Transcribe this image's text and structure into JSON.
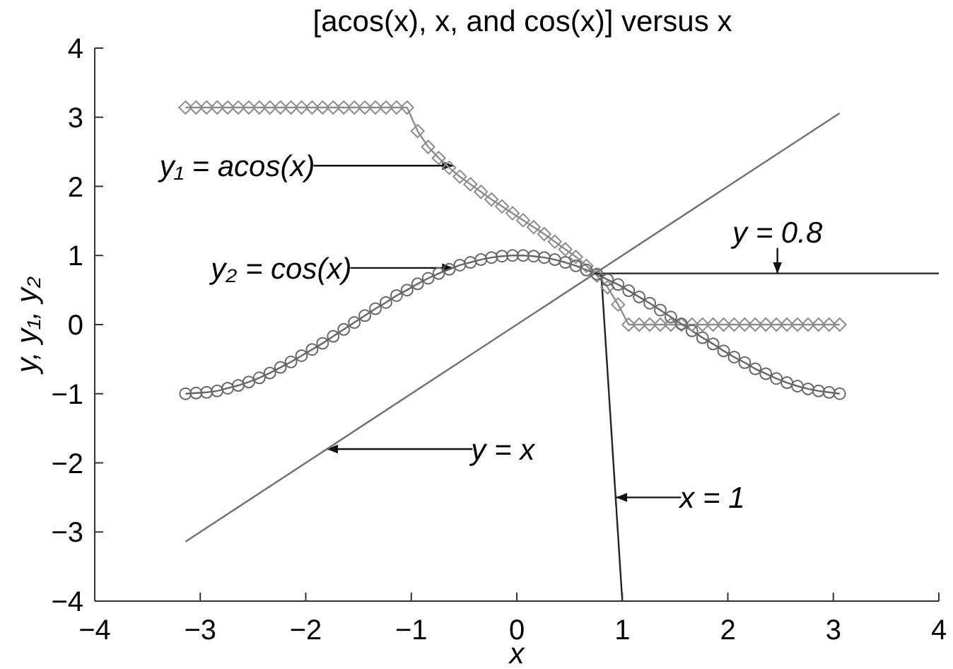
{
  "chart_data": {
    "type": "line",
    "title": "[acos(x), x, and cos(x)] versus x",
    "xlabel": "x",
    "ylabel": "y, y₁, y₂",
    "x": [
      -3.14,
      -3.04,
      -2.94,
      -2.84,
      -2.74,
      -2.64,
      -2.54,
      -2.44,
      -2.34,
      -2.24,
      -2.14,
      -2.04,
      -1.94,
      -1.84,
      -1.74,
      -1.64,
      -1.54,
      -1.44,
      -1.34,
      -1.24,
      -1.14,
      -1.04,
      -0.94,
      -0.84,
      -0.74,
      -0.64,
      -0.54,
      -0.44,
      -0.34,
      -0.24,
      -0.14,
      -0.04,
      0.06,
      0.16,
      0.26,
      0.36,
      0.46,
      0.56,
      0.66,
      0.76,
      0.86,
      0.96,
      1.06,
      1.16,
      1.26,
      1.36,
      1.46,
      1.56,
      1.66,
      1.76,
      1.86,
      1.96,
      2.06,
      2.16,
      2.26,
      2.36,
      2.46,
      2.56,
      2.66,
      2.76,
      2.86,
      2.96,
      3.06
    ],
    "series": [
      {
        "color": "#8c8c8c",
        "marker": "diamond",
        "values": [
          3.14,
          3.14,
          3.14,
          3.14,
          3.14,
          3.14,
          3.14,
          3.14,
          3.14,
          3.14,
          3.14,
          3.14,
          3.14,
          3.14,
          3.14,
          3.14,
          3.14,
          3.14,
          3.14,
          3.14,
          3.14,
          3.14,
          2.8,
          2.57,
          2.41,
          2.27,
          2.14,
          2.03,
          1.92,
          1.81,
          1.71,
          1.61,
          1.51,
          1.41,
          1.31,
          1.2,
          1.09,
          0.98,
          0.85,
          0.71,
          0.54,
          0.29,
          0,
          0,
          0,
          0,
          0,
          0,
          0,
          0,
          0,
          0,
          0,
          0,
          0,
          0,
          0,
          0,
          0,
          0,
          0,
          0,
          0
        ]
      },
      {
        "color": "#666666",
        "marker": "circle",
        "values": [
          -1,
          -0.99,
          -0.98,
          -0.96,
          -0.92,
          -0.88,
          -0.83,
          -0.77,
          -0.7,
          -0.62,
          -0.54,
          -0.45,
          -0.36,
          -0.27,
          -0.17,
          -0.07,
          0.03,
          0.13,
          0.23,
          0.32,
          0.42,
          0.5,
          0.59,
          0.67,
          0.74,
          0.8,
          0.86,
          0.9,
          0.94,
          0.97,
          0.99,
          1,
          1,
          0.99,
          0.97,
          0.94,
          0.9,
          0.85,
          0.79,
          0.73,
          0.65,
          0.58,
          0.49,
          0.4,
          0.31,
          0.21,
          0.11,
          0.01,
          -0.09,
          -0.19,
          -0.28,
          -0.38,
          -0.47,
          -0.55,
          -0.64,
          -0.71,
          -0.78,
          -0.84,
          -0.89,
          -0.93,
          -0.96,
          -0.98,
          -1
        ]
      },
      {
        "color": "#707070",
        "marker": "none",
        "x": [
          -3.14,
          3.06
        ],
        "values": [
          -3.14,
          3.06
        ]
      },
      {
        "color": "#222222",
        "marker": "none",
        "x": [
          0.74,
          4
        ],
        "values": [
          0.74,
          0.74
        ]
      },
      {
        "color": "#222222",
        "marker": "none",
        "x": [
          0.8,
          1
        ],
        "values": [
          0.74,
          -4
        ]
      }
    ],
    "xlim": [
      -4,
      4
    ],
    "xticks": [
      -4,
      -3,
      -2,
      -1,
      0,
      1,
      2,
      3,
      4
    ],
    "ylim": [
      -4,
      4
    ],
    "yticks": [
      -4,
      -3,
      -2,
      -1,
      0,
      1,
      2,
      3,
      4
    ],
    "annotations": [
      {
        "text": "y₁ = acos(x)",
        "x": -0.6,
        "y": 2.3
      },
      {
        "text": "y₂ = cos(x)",
        "x": -0.6,
        "y": 0.82
      },
      {
        "text": "y = x",
        "x": -1.8,
        "y": -1.8
      },
      {
        "text": "x = 1",
        "x": 0.94,
        "y": -2.5
      },
      {
        "text": "y = 0.8",
        "x": 2.47,
        "y": 0.74
      }
    ]
  }
}
